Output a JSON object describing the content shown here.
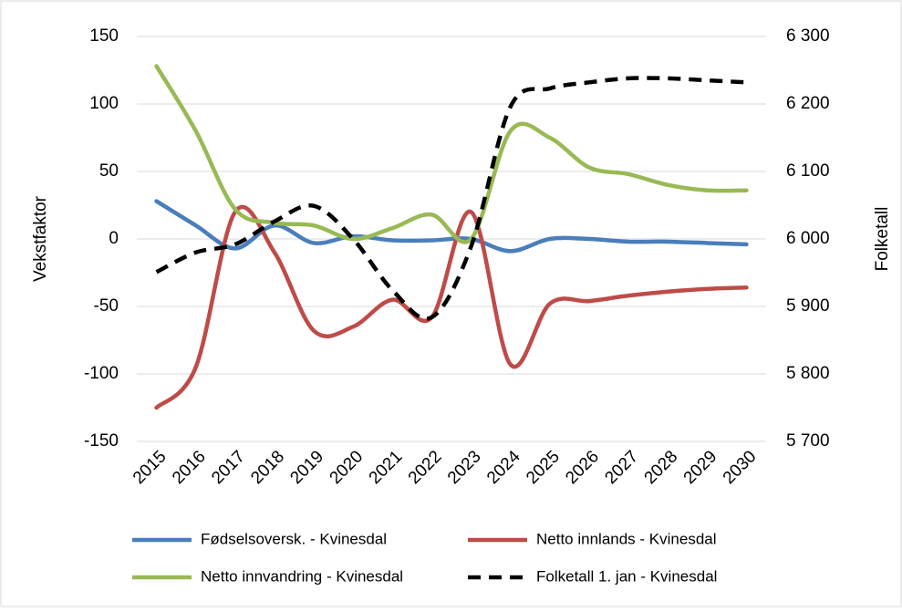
{
  "chart_data": {
    "type": "line",
    "categories": [
      "2015",
      "2016",
      "2017",
      "2018",
      "2019",
      "2020",
      "2021",
      "2022",
      "2023",
      "2024",
      "2025",
      "2026",
      "2027",
      "2028",
      "2029",
      "2030"
    ],
    "ylabel": "Vekstfaktor",
    "y2label": "Folketall",
    "ylim": [
      -150,
      150
    ],
    "yticks": [
      -150,
      -100,
      -50,
      0,
      50,
      100,
      150
    ],
    "y2lim": [
      5700,
      6300
    ],
    "y2ticks": [
      {
        "value": 5700,
        "label": "5 700"
      },
      {
        "value": 5800,
        "label": "5 800"
      },
      {
        "value": 5900,
        "label": "5 900"
      },
      {
        "value": 6000,
        "label": "6 000"
      },
      {
        "value": 6100,
        "label": "6 100"
      },
      {
        "value": 6200,
        "label": "6 200"
      },
      {
        "value": 6300,
        "label": "6 300"
      }
    ],
    "grid": true,
    "series": [
      {
        "name": "Fødselsoversk. - Kvinesdal",
        "color": "#4a7ebb",
        "values": [
          28,
          10,
          -7,
          10,
          -3,
          2,
          -1,
          -1,
          0,
          -9,
          0,
          0,
          -2,
          -2,
          -3,
          -4
        ]
      },
      {
        "name": "Netto innlands - Kvinesdal",
        "color": "#be4b48",
        "values": [
          -125,
          -95,
          20,
          -10,
          -68,
          -65,
          -45,
          -58,
          20,
          -93,
          -48,
          -46,
          -42,
          -39,
          -37,
          -36
        ]
      },
      {
        "name": "Netto innvandring - Kvinesdal",
        "color": "#98b954",
        "values": [
          128,
          80,
          22,
          12,
          10,
          0,
          8,
          18,
          0,
          80,
          75,
          53,
          48,
          40,
          36,
          36
        ]
      },
      {
        "name": "Folketall 1. jan - Kvinesdal",
        "color": "#000000",
        "dashed": true,
        "axis": "y2",
        "values": [
          5951,
          5980,
          5992,
          6026,
          6049,
          6000,
          5924,
          5884,
          5989,
          6196,
          6223,
          6232,
          6238,
          6238,
          6235,
          6232
        ]
      }
    ]
  }
}
